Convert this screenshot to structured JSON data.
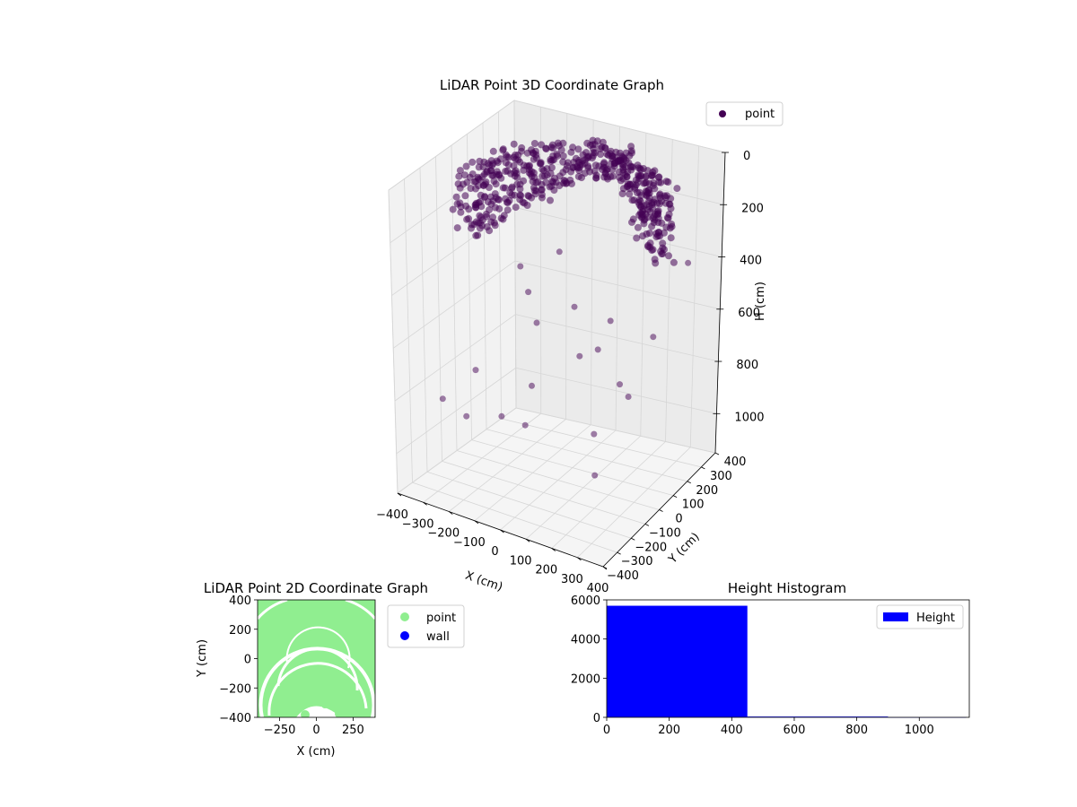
{
  "chart_data": [
    {
      "type": "scatter",
      "projection": "3d",
      "title": "LiDAR Point 3D Coordinate Graph",
      "xlabel": "X (cm)",
      "ylabel": "Y (cm)",
      "zlabel": "H (cm)",
      "xlim": [
        -400,
        400
      ],
      "ylim": [
        -400,
        400
      ],
      "zlim": [
        1150,
        0
      ],
      "xticks": [
        "−400",
        "−300",
        "−200",
        "−100",
        "0",
        "100",
        "200",
        "300",
        "400"
      ],
      "yticks": [
        "−400",
        "−300",
        "−200",
        "−100",
        "0",
        "100",
        "200",
        "300",
        "400"
      ],
      "zticks": [
        "0",
        "200",
        "400",
        "600",
        "800",
        "1000"
      ],
      "zaxis_inverted": true,
      "grid": true,
      "legend": {
        "position": "top-right",
        "entries": [
          "point"
        ]
      },
      "series": [
        {
          "name": "point",
          "color": "#440154",
          "description_points": {
            "dense_band": {
              "x_range": [
                -300,
                380
              ],
              "y_range": [
                -380,
                380
              ],
              "h_range": [
                60,
                320
              ]
            },
            "outliers": [
              [
                -380,
                -120,
                900
              ],
              [
                -300,
                -100,
                950
              ],
              [
                -250,
                50,
                1000
              ],
              [
                -200,
                -200,
                700
              ],
              [
                -150,
                120,
                650
              ],
              [
                -100,
                0,
                820
              ],
              [
                -50,
                200,
                600
              ],
              [
                0,
                150,
                750
              ],
              [
                50,
                -300,
                780
              ],
              [
                100,
                250,
                880
              ],
              [
                150,
                100,
                550
              ],
              [
                200,
                300,
                700
              ],
              [
                250,
                -150,
                500
              ],
              [
                300,
                350,
                420
              ],
              [
                -320,
                300,
                560
              ],
              [
                -260,
                250,
                620
              ],
              [
                -180,
                320,
                480
              ],
              [
                60,
                380,
                1000
              ],
              [
                120,
                40,
                960
              ],
              [
                180,
                -60,
                1050
              ]
            ]
          }
        }
      ]
    },
    {
      "type": "scatter",
      "title": "LiDAR Point 2D Coordinate Graph",
      "xlabel": "X (cm)",
      "ylabel": "Y (cm)",
      "xlim": [
        -400,
        400
      ],
      "ylim": [
        -400,
        400
      ],
      "xticks": [
        "−250",
        "0",
        "250"
      ],
      "yticks": [
        "−400",
        "−200",
        "0",
        "200",
        "400"
      ],
      "legend": {
        "position": "right",
        "entries": [
          "point",
          "wall"
        ]
      },
      "series": [
        {
          "name": "point",
          "color": "#90ee90"
        },
        {
          "name": "wall",
          "color": "#0000ff"
        }
      ]
    },
    {
      "type": "bar",
      "title": "Height Histogram",
      "xlim": [
        0,
        1160
      ],
      "ylim": [
        0,
        6000
      ],
      "xticks": [
        "0",
        "200",
        "400",
        "600",
        "800",
        "1000"
      ],
      "yticks": [
        "0",
        "2000",
        "4000",
        "6000"
      ],
      "bins": [
        [
          0,
          450
        ],
        [
          450,
          900
        ],
        [
          900,
          1150
        ]
      ],
      "values": [
        5700,
        40,
        5
      ],
      "legend": {
        "position": "top-right",
        "entries": [
          "Height"
        ]
      },
      "series": [
        {
          "name": "Height",
          "color": "#0000ff"
        }
      ]
    }
  ]
}
